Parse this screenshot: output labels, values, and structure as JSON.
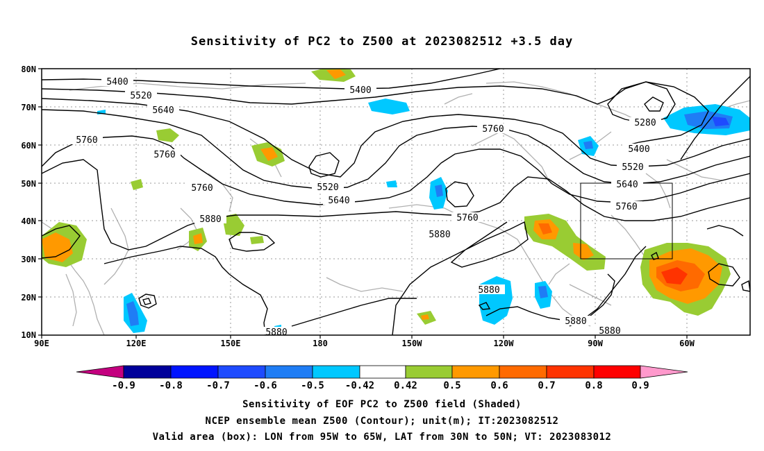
{
  "title": "Sensitivity of PC2 to Z500 at 2023082512 +3.5 day",
  "lat_labels": [
    "80N",
    "70N",
    "60N",
    "50N",
    "40N",
    "30N",
    "20N",
    "10N"
  ],
  "lon_labels": [
    "90E",
    "120E",
    "150E",
    "180",
    "150W",
    "120W",
    "90W",
    "60W"
  ],
  "contour_labels": [
    "5400",
    "5400",
    "5520",
    "5640",
    "5760",
    "5760",
    "5760",
    "5760",
    "5880",
    "5520",
    "5640",
    "5760",
    "5880",
    "5880",
    "5880",
    "5880",
    "5280",
    "5400",
    "5520",
    "5640",
    "5760",
    "5880"
  ],
  "colorbar": {
    "labels": [
      "-0.9",
      "-0.8",
      "-0.7",
      "-0.6",
      "-0.5",
      "-0.42",
      "0.42",
      "0.5",
      "0.6",
      "0.7",
      "0.8",
      "0.9"
    ],
    "colors": [
      "#c4007f",
      "#00009a",
      "#0014ff",
      "#1e4bff",
      "#1f7df5",
      "#00c8ff",
      "#ffffff",
      "#99cc33",
      "#ff9900",
      "#ff6a00",
      "#ff3300",
      "#ff0000",
      "#ff99cc"
    ]
  },
  "captions": [
    "Sensitivity of EOF PC2 to Z500 field (Shaded)",
    "NCEP ensemble mean Z500 (Contour); unit(m); IT:2023082512",
    "Valid area (box): LON from 95W to 65W, LAT from 30N to 50N; VT: 2023083012"
  ]
}
